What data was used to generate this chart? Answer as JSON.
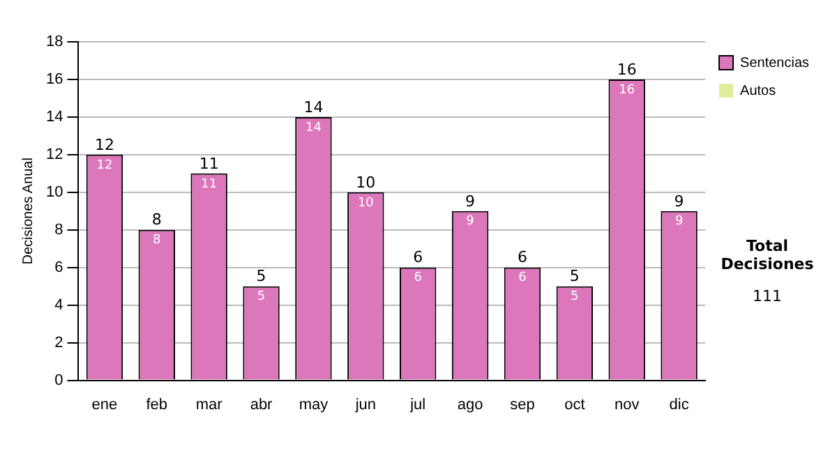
{
  "chart_data": {
    "type": "bar",
    "stacked": true,
    "ylabel": "Decisiones Anual",
    "categories": [
      "ene",
      "feb",
      "mar",
      "abr",
      "may",
      "jun",
      "jul",
      "ago",
      "sep",
      "oct",
      "nov",
      "dic"
    ],
    "series": [
      {
        "name": "Sentencias",
        "color": "#dd77bb",
        "values": [
          12,
          8,
          11,
          5,
          14,
          10,
          6,
          9,
          6,
          5,
          16,
          9
        ],
        "value_labels": [
          "12",
          "8",
          "11",
          "5",
          "14",
          "10",
          "6",
          "9",
          "6",
          "5",
          "16",
          "9"
        ]
      },
      {
        "name": "Autos",
        "color": "#ddee99",
        "values": [
          0,
          0,
          0,
          0,
          0,
          0,
          0,
          0,
          0,
          0,
          0,
          0
        ],
        "value_labels": [
          null,
          null,
          null,
          null,
          null,
          null,
          null,
          null,
          null,
          null,
          null,
          null
        ]
      }
    ],
    "totals": [
      "12",
      "8",
      "11",
      "5",
      "14",
      "10",
      "6",
      "9",
      "6",
      "5",
      "16",
      "9"
    ],
    "ylim": [
      0,
      18
    ],
    "yticks": [
      0,
      2,
      4,
      6,
      8,
      10,
      12,
      14,
      16,
      18
    ],
    "grid": "y",
    "legend": "right",
    "annotations": [
      "Total Decisiones",
      "111"
    ]
  }
}
